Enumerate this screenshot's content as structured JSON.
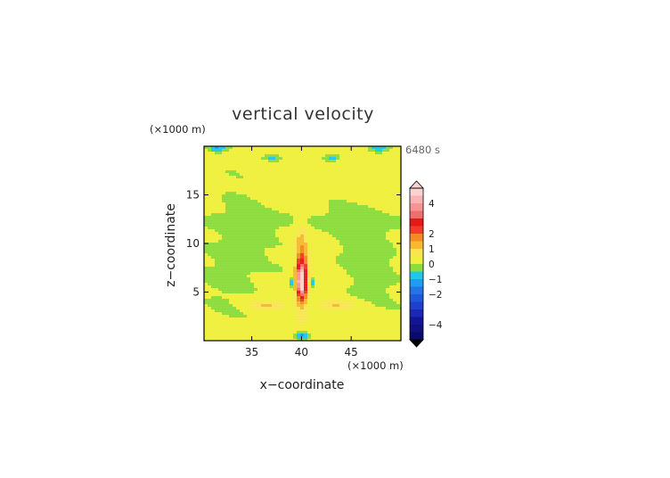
{
  "chart_data": {
    "type": "heatmap",
    "title": "vertical velocity",
    "time_label": "6480 s",
    "xlabel": "x−coordinate",
    "ylabel": "z−coordinate",
    "x_unit": "(×1000 m)",
    "y_unit": "(×1000 m)",
    "xlim": [
      30.2,
      50
    ],
    "ylim": [
      0,
      20
    ],
    "x_ticks": [
      {
        "value": 35,
        "label": "35"
      },
      {
        "value": 40,
        "label": "40"
      },
      {
        "value": 45,
        "label": "45"
      }
    ],
    "y_ticks": [
      {
        "value": 5,
        "label": "5"
      },
      {
        "value": 10,
        "label": "10"
      },
      {
        "value": 15,
        "label": "15"
      }
    ],
    "colorbar": {
      "levels": [
        -5,
        -4.5,
        -4,
        -3.5,
        -3,
        -2.5,
        -2,
        -1.5,
        -1,
        -0.5,
        0,
        0.5,
        1,
        1.5,
        2,
        2.5,
        3,
        3.5,
        4,
        4.5,
        5
      ],
      "colors": [
        "#0a0a6a",
        "#10107e",
        "#141496",
        "#1a28b4",
        "#1e40cc",
        "#2058dc",
        "#2474e6",
        "#1e9ef0",
        "#1ec8e6",
        "#8cdc3c",
        "#f0f03c",
        "#f8e650",
        "#f8b830",
        "#f48a22",
        "#f03c28",
        "#e81818",
        "#f06e6e",
        "#f69494",
        "#f8b4b4",
        "#fad2d2"
      ],
      "tick_labels": [
        {
          "value": 4,
          "label": "4"
        },
        {
          "value": 2,
          "label": "2"
        },
        {
          "value": 1,
          "label": "1"
        },
        {
          "value": 0,
          "label": "0"
        },
        {
          "value": -1,
          "label": "−1"
        },
        {
          "value": -2,
          "label": "−2"
        },
        {
          "value": -4,
          "label": "−4"
        }
      ]
    },
    "features": [
      {
        "kind": "updraft-core",
        "x": 40,
        "z": 6.1,
        "sx": 0.32,
        "sz": 1.1,
        "amp": 3.6
      },
      {
        "kind": "updraft-column",
        "x": 40,
        "z": 7.0,
        "sx": 0.45,
        "sz": 2.8,
        "amp": 2.2
      },
      {
        "kind": "compensating-descent",
        "x": 33.5,
        "z": 9.0,
        "sx": 2.2,
        "sz": 4.0,
        "amp": -0.35
      },
      {
        "kind": "compensating-descent",
        "x": 46.5,
        "z": 9.0,
        "sx": 2.2,
        "sz": 4.0,
        "amp": -0.35
      },
      {
        "kind": "descent-band",
        "x": 40,
        "z": 12.3,
        "sx": 9.0,
        "sz": 0.7,
        "amp": -0.25
      },
      {
        "kind": "downdraft-edge",
        "x": 39.0,
        "z": 6.0,
        "sx": 0.15,
        "sz": 0.3,
        "amp": -1.3
      },
      {
        "kind": "downdraft-edge",
        "x": 41.0,
        "z": 6.0,
        "sx": 0.15,
        "sz": 0.3,
        "amp": -1.3
      },
      {
        "kind": "surface-downdraft",
        "x": 40,
        "z": 0.5,
        "sx": 0.4,
        "sz": 0.3,
        "amp": -1.4
      },
      {
        "kind": "top-downdraft",
        "x": 31.5,
        "z": 19.8,
        "sx": 0.6,
        "sz": 0.25,
        "amp": -1.2
      },
      {
        "kind": "top-downdraft",
        "x": 47.8,
        "z": 19.8,
        "sx": 0.6,
        "sz": 0.25,
        "amp": -1.2
      },
      {
        "kind": "top-downdraft",
        "x": 37.0,
        "z": 18.8,
        "sx": 0.5,
        "sz": 0.2,
        "amp": -0.9
      },
      {
        "kind": "top-downdraft",
        "x": 43.0,
        "z": 18.8,
        "sx": 0.5,
        "sz": 0.2,
        "amp": -0.9
      },
      {
        "kind": "weak-updraft",
        "x": 36.5,
        "z": 3.7,
        "sx": 1.4,
        "sz": 0.35,
        "amp": 0.9
      },
      {
        "kind": "weak-updraft",
        "x": 43.5,
        "z": 3.7,
        "sx": 1.4,
        "sz": 0.35,
        "amp": 0.9
      }
    ]
  }
}
